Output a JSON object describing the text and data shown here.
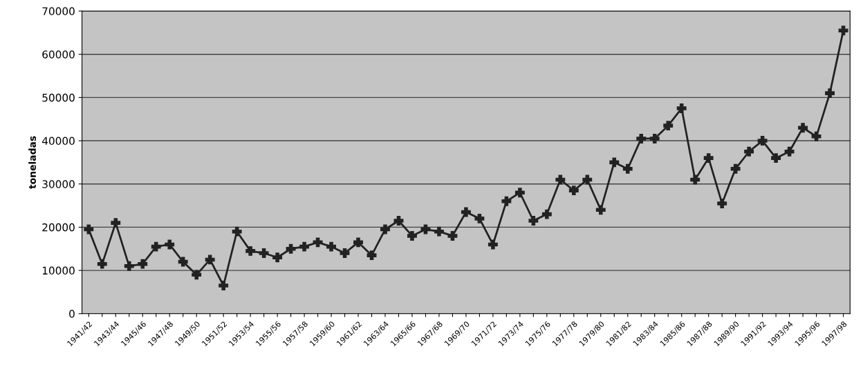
{
  "chart_data": {
    "type": "line",
    "ylabel": "toneladas",
    "categories": [
      "1941/42",
      null,
      "1943/44",
      null,
      "1945/46",
      null,
      "1947/48",
      null,
      "1949/50",
      null,
      "1951/52",
      null,
      "1953/54",
      null,
      "1955/56",
      null,
      "1957/58",
      null,
      "1959/60",
      null,
      "1961/62",
      null,
      "1963/64",
      null,
      "1965/66",
      null,
      "1967/68",
      null,
      "1969/70",
      null,
      "1971/72",
      null,
      "1973/74",
      null,
      "1975/76",
      null,
      "1977/78",
      null,
      "1979/80",
      null,
      "1981/82",
      null,
      "1983/84",
      null,
      "1985/86",
      null,
      "1987/88",
      null,
      "1989/90",
      null,
      "1991/92",
      null,
      "1993/94",
      null,
      "1995/96",
      null,
      "1997/98"
    ],
    "series": [
      {
        "color": "#222222",
        "values": [
          19500,
          11500,
          21000,
          11000,
          11500,
          15500,
          16000,
          12000,
          9000,
          12500,
          6500,
          19000,
          14500,
          14000,
          13000,
          15000,
          15500,
          16500,
          15500,
          14000,
          16500,
          13500,
          19500,
          21500,
          18000,
          19500,
          19000,
          18000,
          23500,
          22000,
          16000,
          26000,
          28000,
          21500,
          23000,
          31000,
          28500,
          31000,
          24000,
          35000,
          33500,
          40500,
          40500,
          43500,
          47500,
          31000,
          36000,
          25500,
          33500,
          37500,
          40000,
          36000,
          37500,
          43000,
          41000,
          51000,
          65500
        ]
      }
    ],
    "ylim": [
      0,
      70000
    ],
    "yticks": [
      0,
      10000,
      20000,
      30000,
      40000,
      50000,
      60000,
      70000
    ],
    "grid": "y",
    "marker": "cross",
    "line_style": "solid"
  }
}
